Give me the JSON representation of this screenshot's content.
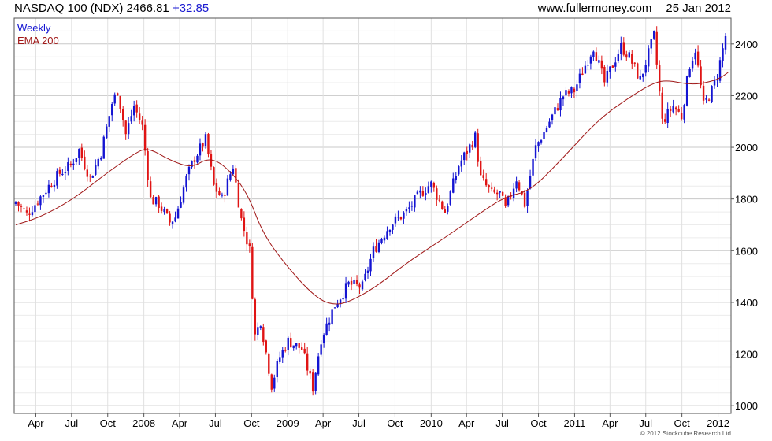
{
  "header": {
    "symbol_text": "NASDAQ 100 (NDX) 2466.81",
    "change_text": "+32.85",
    "site": "www.fullermoney.com",
    "date": "25 Jan 2012"
  },
  "credit": "© 2012 Stockcube Research Ltd",
  "colors": {
    "up": "#1414d2",
    "down": "#e01414",
    "ema": "#a01818",
    "grid": "#d8d8d8",
    "frame": "#555555"
  },
  "chart_data": {
    "type": "bar",
    "subtype": "weekly candlestick (OHLC) with moving average",
    "title": "NASDAQ 100 (NDX)",
    "last_value": 2466.81,
    "change": 32.85,
    "legend": [
      "Weekly",
      "EMA 200"
    ],
    "legend_position": "top-left",
    "y_axis_position": "right",
    "ylim": [
      970,
      2500
    ],
    "y_ticks": [
      1000,
      1200,
      1400,
      1600,
      1800,
      2000,
      2200,
      2400
    ],
    "x_range": [
      "2007-02-05",
      "2012-02-03"
    ],
    "x_ticks": [
      {
        "label": "Apr",
        "date": "2007-04-01"
      },
      {
        "label": "Jul",
        "date": "2007-07-01"
      },
      {
        "label": "Oct",
        "date": "2007-10-01"
      },
      {
        "label": "2008",
        "date": "2008-01-01"
      },
      {
        "label": "Apr",
        "date": "2008-04-01"
      },
      {
        "label": "Jul",
        "date": "2008-07-01"
      },
      {
        "label": "Oct",
        "date": "2008-10-01"
      },
      {
        "label": "2009",
        "date": "2009-01-01"
      },
      {
        "label": "Apr",
        "date": "2009-04-01"
      },
      {
        "label": "Jul",
        "date": "2009-07-01"
      },
      {
        "label": "Oct",
        "date": "2009-10-01"
      },
      {
        "label": "2010",
        "date": "2010-01-01"
      },
      {
        "label": "Apr",
        "date": "2010-04-01"
      },
      {
        "label": "Jul",
        "date": "2010-07-01"
      },
      {
        "label": "Oct",
        "date": "2010-10-01"
      },
      {
        "label": "2011",
        "date": "2011-01-01"
      },
      {
        "label": "Apr",
        "date": "2011-04-01"
      },
      {
        "label": "Jul",
        "date": "2011-07-01"
      },
      {
        "label": "Oct",
        "date": "2011-10-01"
      },
      {
        "label": "2012",
        "date": "2012-01-01"
      }
    ],
    "grid": true,
    "price_path": [
      [
        "2007-02-09",
        1790
      ],
      [
        "2007-03-09",
        1740
      ],
      [
        "2007-03-30",
        1780
      ],
      [
        "2007-05-04",
        1850
      ],
      [
        "2007-06-01",
        1900
      ],
      [
        "2007-06-29",
        1930
      ],
      [
        "2007-07-20",
        1990
      ],
      [
        "2007-08-17",
        1880
      ],
      [
        "2007-09-14",
        1980
      ],
      [
        "2007-10-12",
        2170
      ],
      [
        "2007-10-26",
        2220
      ],
      [
        "2007-11-16",
        2050
      ],
      [
        "2007-12-07",
        2160
      ],
      [
        "2007-12-28",
        2080
      ],
      [
        "2008-01-18",
        1800
      ],
      [
        "2008-02-08",
        1780
      ],
      [
        "2008-03-07",
        1710
      ],
      [
        "2008-03-21",
        1730
      ],
      [
        "2008-04-18",
        1880
      ],
      [
        "2008-05-09",
        1960
      ],
      [
        "2008-06-06",
        2030
      ],
      [
        "2008-06-27",
        1850
      ],
      [
        "2008-07-18",
        1800
      ],
      [
        "2008-08-15",
        1930
      ],
      [
        "2008-09-05",
        1720
      ],
      [
        "2008-09-26",
        1600
      ],
      [
        "2008-10-10",
        1270
      ],
      [
        "2008-10-24",
        1330
      ],
      [
        "2008-11-21",
        1080
      ],
      [
        "2008-12-12",
        1190
      ],
      [
        "2009-01-02",
        1250
      ],
      [
        "2009-02-06",
        1220
      ],
      [
        "2009-03-06",
        1070
      ],
      [
        "2009-03-27",
        1260
      ],
      [
        "2009-05-01",
        1390
      ],
      [
        "2009-06-05",
        1470
      ],
      [
        "2009-07-10",
        1460
      ],
      [
        "2009-08-07",
        1600
      ],
      [
        "2009-09-18",
        1700
      ],
      [
        "2009-10-30",
        1750
      ],
      [
        "2009-12-04",
        1820
      ],
      [
        "2009-12-31",
        1860
      ],
      [
        "2010-02-05",
        1750
      ],
      [
        "2010-03-12",
        1930
      ],
      [
        "2010-04-23",
        2040
      ],
      [
        "2010-05-07",
        1880
      ],
      [
        "2010-06-04",
        1820
      ],
      [
        "2010-06-25",
        1820
      ],
      [
        "2010-07-09",
        1760
      ],
      [
        "2010-08-06",
        1880
      ],
      [
        "2010-08-27",
        1780
      ],
      [
        "2010-09-24",
        2000
      ],
      [
        "2010-10-29",
        2100
      ],
      [
        "2010-12-03",
        2200
      ],
      [
        "2010-12-31",
        2220
      ],
      [
        "2011-02-18",
        2390
      ],
      [
        "2011-03-18",
        2250
      ],
      [
        "2011-04-29",
        2390
      ],
      [
        "2011-05-20",
        2350
      ],
      [
        "2011-06-17",
        2260
      ],
      [
        "2011-07-22",
        2430
      ],
      [
        "2011-08-12",
        2100
      ],
      [
        "2011-09-09",
        2160
      ],
      [
        "2011-09-30",
        2120
      ],
      [
        "2011-10-21",
        2320
      ],
      [
        "2011-11-04",
        2380
      ],
      [
        "2011-11-25",
        2160
      ],
      [
        "2011-12-16",
        2220
      ],
      [
        "2011-12-30",
        2280
      ],
      [
        "2012-01-13",
        2380
      ],
      [
        "2012-01-25",
        2466.81
      ]
    ],
    "ema_200": [
      [
        "2007-02-09",
        1700
      ],
      [
        "2007-04-13",
        1730
      ],
      [
        "2007-07-06",
        1800
      ],
      [
        "2007-09-28",
        1900
      ],
      [
        "2007-12-07",
        1975
      ],
      [
        "2008-01-11",
        2000
      ],
      [
        "2008-03-07",
        1950
      ],
      [
        "2008-05-02",
        1920
      ],
      [
        "2008-06-13",
        1960
      ],
      [
        "2008-07-25",
        1930
      ],
      [
        "2008-09-19",
        1830
      ],
      [
        "2008-10-31",
        1660
      ],
      [
        "2009-01-09",
        1520
      ],
      [
        "2009-03-13",
        1420
      ],
      [
        "2009-04-24",
        1390
      ],
      [
        "2009-06-05",
        1400
      ],
      [
        "2009-08-14",
        1460
      ],
      [
        "2009-11-06",
        1560
      ],
      [
        "2010-02-05",
        1650
      ],
      [
        "2010-04-30",
        1740
      ],
      [
        "2010-07-09",
        1810
      ],
      [
        "2010-09-10",
        1830
      ],
      [
        "2010-12-03",
        1960
      ],
      [
        "2011-03-04",
        2110
      ],
      [
        "2011-05-27",
        2200
      ],
      [
        "2011-07-22",
        2250
      ],
      [
        "2011-08-26",
        2260
      ],
      [
        "2011-10-28",
        2240
      ],
      [
        "2011-12-30",
        2260
      ],
      [
        "2012-01-27",
        2290
      ]
    ]
  }
}
